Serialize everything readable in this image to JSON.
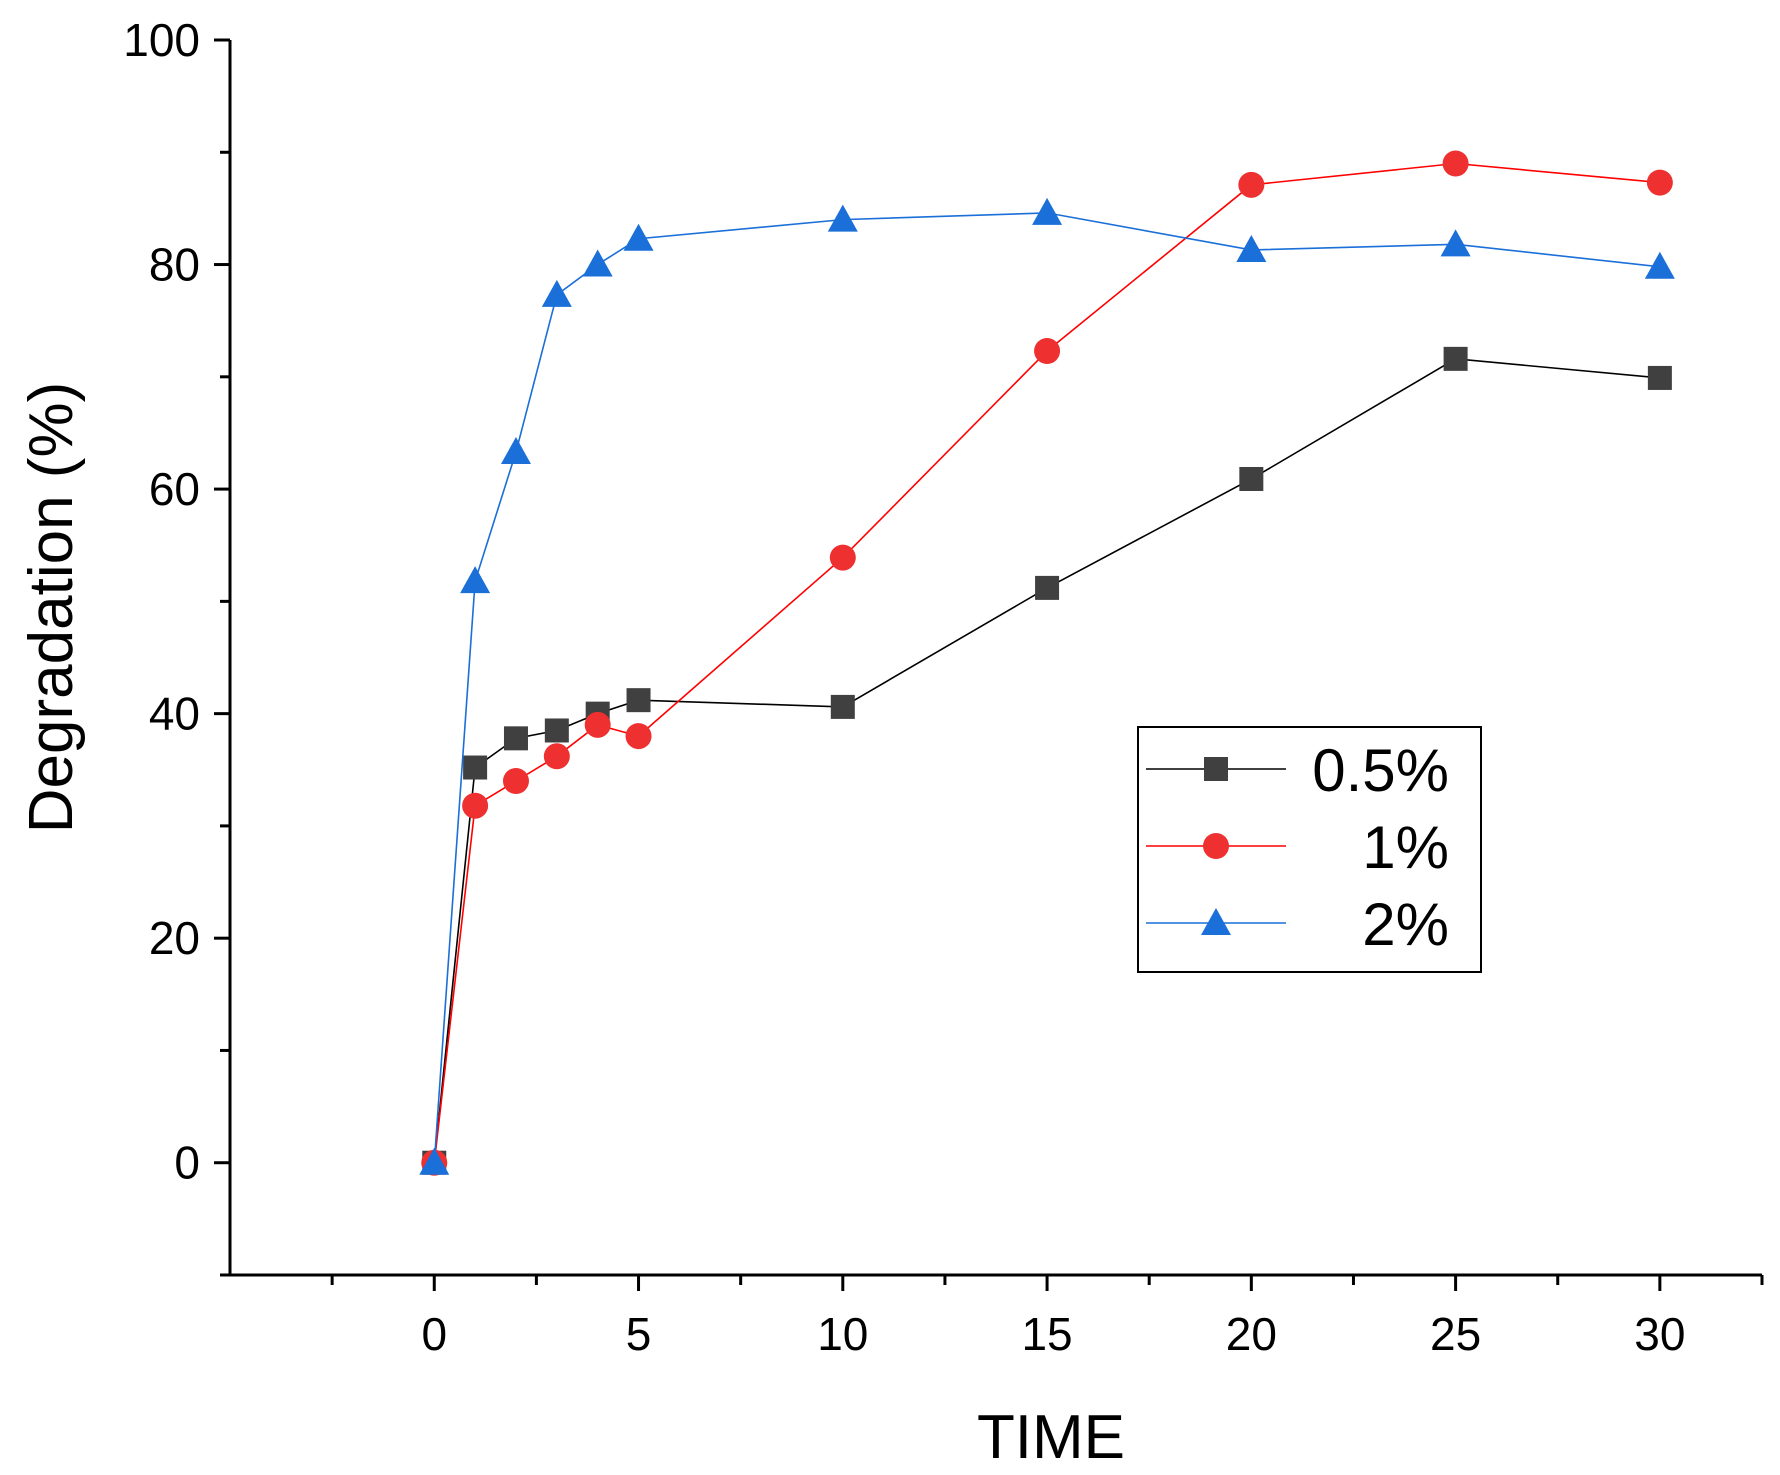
{
  "chart_data": {
    "type": "line",
    "xlabel": "TIME",
    "ylabel": "Degradation (%)",
    "xlim": [
      -5,
      32.5
    ],
    "ylim": [
      -10,
      100
    ],
    "x_ticks": [
      0,
      5,
      10,
      15,
      20,
      25,
      30
    ],
    "x_tick_labels": [
      "0",
      "5",
      "10",
      "15",
      "20",
      "25",
      "30"
    ],
    "x_minor_step": 2.5,
    "y_ticks": [
      0,
      20,
      40,
      60,
      80,
      100
    ],
    "y_tick_labels": [
      "0",
      "20",
      "40",
      "60",
      "80",
      "100"
    ],
    "y_minor_step": 10,
    "grid": false,
    "legend_position": "center-right",
    "series": [
      {
        "name": "0.5%",
        "color": "#000000",
        "marker_color": "#404040",
        "marker": "square",
        "x": [
          0,
          1,
          2,
          3,
          4,
          5,
          10,
          15,
          20,
          25,
          30
        ],
        "y": [
          0,
          35.2,
          37.8,
          38.5,
          40.0,
          41.2,
          40.6,
          51.2,
          60.9,
          71.6,
          69.9
        ]
      },
      {
        "name": "1%",
        "color": "#ff0000",
        "marker_color": "#ee3030",
        "marker": "circle",
        "x": [
          0,
          1,
          2,
          3,
          4,
          5,
          10,
          15,
          20,
          25,
          30
        ],
        "y": [
          0,
          31.8,
          34.0,
          36.2,
          39.0,
          38.0,
          53.9,
          72.3,
          87.1,
          89.0,
          87.3
        ]
      },
      {
        "name": "2%",
        "color": "#1a6fd8",
        "marker_color": "#1a6fd8",
        "marker": "triangle",
        "x": [
          0,
          1,
          2,
          3,
          4,
          5,
          10,
          15,
          20,
          25,
          30
        ],
        "y": [
          0,
          51.8,
          63.3,
          77.3,
          80.0,
          82.3,
          84.0,
          84.6,
          81.3,
          81.8,
          79.8
        ]
      }
    ]
  }
}
